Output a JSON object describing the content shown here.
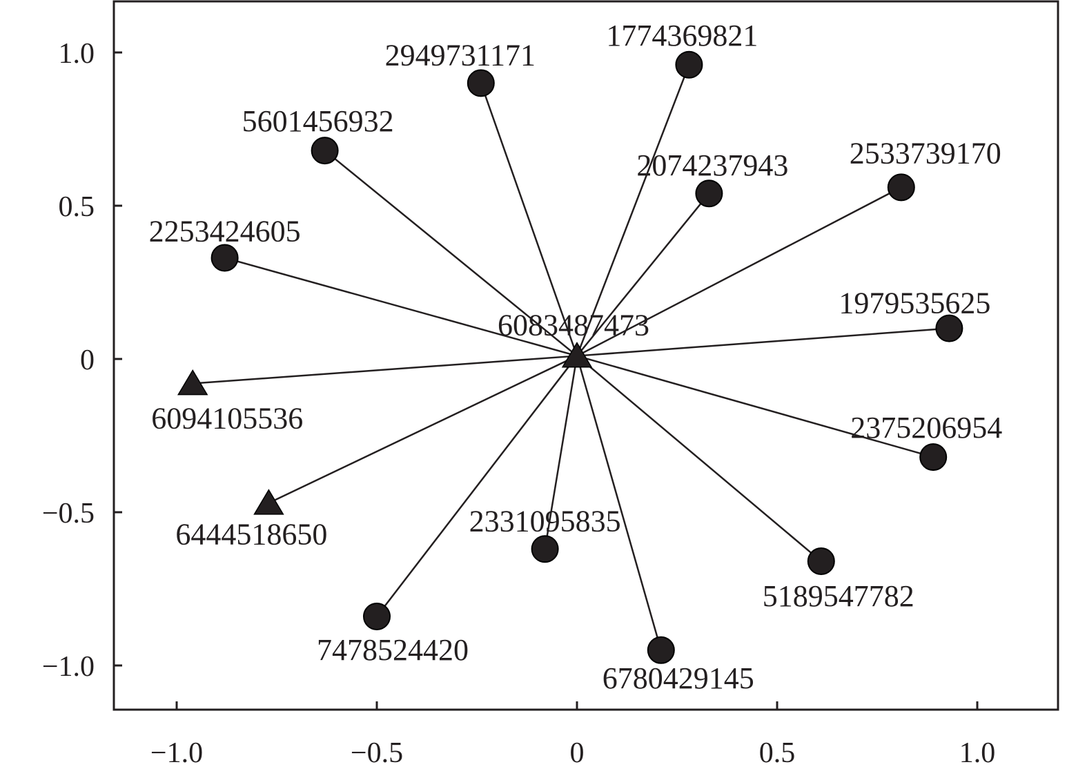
{
  "chart_data": {
    "type": "scatter",
    "title": "",
    "xlabel": "",
    "ylabel": "",
    "xlim": [
      -1.2,
      1.2
    ],
    "ylim": [
      -1.15,
      1.2
    ],
    "x_ticks": [
      {
        "value": -1.0,
        "label": "−1.0"
      },
      {
        "value": -0.5,
        "label": "−0.5"
      },
      {
        "value": 0,
        "label": "0"
      },
      {
        "value": 0.5,
        "label": "0.5"
      },
      {
        "value": 1.0,
        "label": "1.0"
      }
    ],
    "y_ticks": [
      {
        "value": 1.0,
        "label": "1.0"
      },
      {
        "value": 0.5,
        "label": "0.5"
      },
      {
        "value": 0,
        "label": "0"
      },
      {
        "value": -0.5,
        "label": "−0.5"
      },
      {
        "value": -1.0,
        "label": "−1.0"
      }
    ],
    "grid": false,
    "center": {
      "id": "6083487473",
      "x": 0.0,
      "y": 0.01,
      "shape": "triangle"
    },
    "points": [
      {
        "id": "1774369821",
        "x": 0.28,
        "y": 0.96,
        "shape": "circle"
      },
      {
        "id": "2949731171",
        "x": -0.24,
        "y": 0.9,
        "shape": "circle"
      },
      {
        "id": "5601456932",
        "x": -0.63,
        "y": 0.68,
        "shape": "circle"
      },
      {
        "id": "2074237943",
        "x": 0.33,
        "y": 0.54,
        "shape": "circle"
      },
      {
        "id": "2533739170",
        "x": 0.81,
        "y": 0.56,
        "shape": "circle"
      },
      {
        "id": "2253424605",
        "x": -0.88,
        "y": 0.33,
        "shape": "circle"
      },
      {
        "id": "1979535625",
        "x": 0.93,
        "y": 0.1,
        "shape": "circle"
      },
      {
        "id": "6094105536",
        "x": -0.96,
        "y": -0.08,
        "shape": "triangle"
      },
      {
        "id": "2375206954",
        "x": 0.89,
        "y": -0.32,
        "shape": "circle"
      },
      {
        "id": "6444518650",
        "x": -0.77,
        "y": -0.47,
        "shape": "triangle"
      },
      {
        "id": "2331095835",
        "x": -0.08,
        "y": -0.62,
        "shape": "circle"
      },
      {
        "id": "5189547782",
        "x": 0.61,
        "y": -0.66,
        "shape": "circle"
      },
      {
        "id": "7478524420",
        "x": -0.5,
        "y": -0.84,
        "shape": "circle"
      },
      {
        "id": "6780429145",
        "x": 0.21,
        "y": -0.95,
        "shape": "circle"
      }
    ],
    "colors": {
      "mark": "#231f20",
      "axis": "#231f20"
    }
  }
}
